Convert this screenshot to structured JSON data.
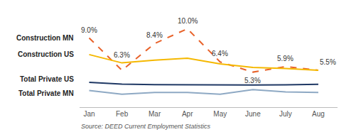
{
  "chart_data": {
    "type": "line",
    "categories": [
      "Jan",
      "Feb",
      "Mar",
      "Apr",
      "May",
      "June",
      "July",
      "Aug"
    ],
    "series": [
      {
        "name": "Construction MN",
        "color": "#E8622A",
        "line_style": "dashed",
        "values": [
          9.0,
          5.5,
          8.4,
          10.0,
          6.4,
          5.3,
          5.9,
          5.5
        ],
        "value_labels": [
          "9.0%",
          null,
          "8.4%",
          "10.0%",
          "6.4%",
          "5.3%",
          "5.9%",
          "5.5%"
        ]
      },
      {
        "name": "Construction US",
        "color": "#F5B800",
        "line_style": "solid",
        "values": [
          7.2,
          6.3,
          6.6,
          6.8,
          6.2,
          5.8,
          5.7,
          5.5
        ],
        "value_labels": [
          null,
          "6.3%",
          null,
          null,
          null,
          null,
          null,
          null
        ]
      },
      {
        "name": "Total Private US",
        "color": "#1F3864",
        "line_style": "solid",
        "values": [
          4.2,
          4.0,
          3.95,
          3.92,
          3.88,
          3.9,
          3.93,
          3.98
        ]
      },
      {
        "name": "Total Private MN",
        "color": "#8EA9C4",
        "line_style": "solid",
        "values": [
          3.3,
          2.9,
          3.1,
          3.1,
          2.9,
          3.4,
          3.15,
          3.1
        ]
      }
    ],
    "ylim": [
      1.5,
      12.5
    ],
    "tick_labels": "x",
    "grid": false,
    "annotations": [
      "Source: DEED Current Employment Statistics"
    ]
  }
}
